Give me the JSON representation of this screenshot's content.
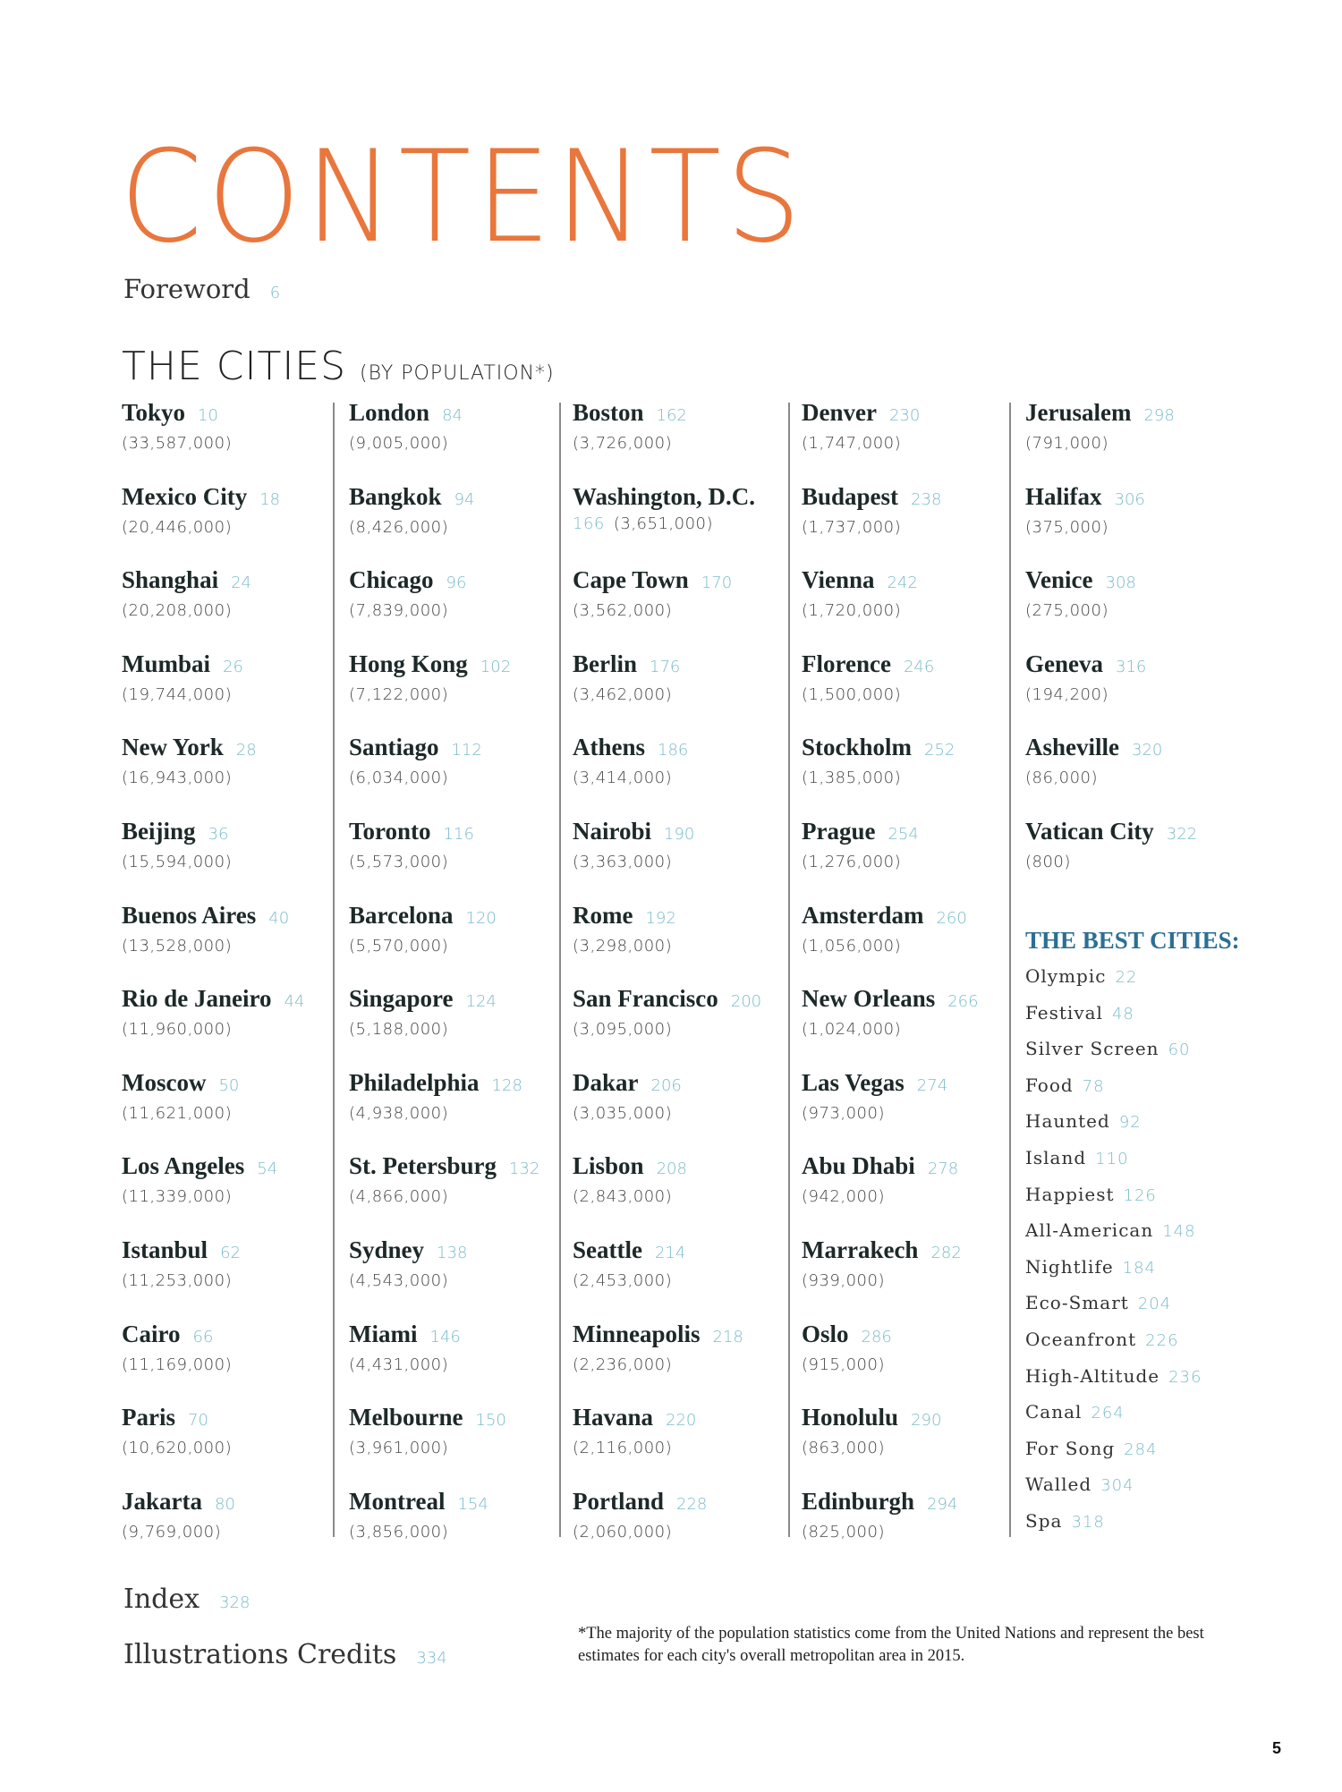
{
  "title": "CONTENTS",
  "foreword": {
    "label": "Foreword",
    "page": "6"
  },
  "cities_heading": {
    "main": "THE CITIES",
    "sub": "(BY POPULATION*)"
  },
  "columns": [
    [
      {
        "name": "Tokyo",
        "page": "10",
        "population": "(33,587,000)"
      },
      {
        "name": "Mexico City",
        "page": "18",
        "population": "(20,446,000)"
      },
      {
        "name": "Shanghai",
        "page": "24",
        "population": "(20,208,000)"
      },
      {
        "name": "Mumbai",
        "page": "26",
        "population": "(19,744,000)"
      },
      {
        "name": "New York",
        "page": "28",
        "population": "(16,943,000)"
      },
      {
        "name": "Beijing",
        "page": "36",
        "population": "(15,594,000)"
      },
      {
        "name": "Buenos Aires",
        "page": "40",
        "population": "(13,528,000)"
      },
      {
        "name": "Rio de Janeiro",
        "page": "44",
        "population": "(11,960,000)"
      },
      {
        "name": "Moscow",
        "page": "50",
        "population": "(11,621,000)"
      },
      {
        "name": "Los Angeles",
        "page": "54",
        "population": "(11,339,000)"
      },
      {
        "name": "Istanbul",
        "page": "62",
        "population": "(11,253,000)"
      },
      {
        "name": "Cairo",
        "page": "66",
        "population": "(11,169,000)"
      },
      {
        "name": "Paris",
        "page": "70",
        "population": "(10,620,000)"
      },
      {
        "name": "Jakarta",
        "page": "80",
        "population": "(9,769,000)"
      }
    ],
    [
      {
        "name": "London",
        "page": "84",
        "population": "(9,005,000)"
      },
      {
        "name": "Bangkok",
        "page": "94",
        "population": "(8,426,000)"
      },
      {
        "name": "Chicago",
        "page": "96",
        "population": "(7,839,000)"
      },
      {
        "name": "Hong Kong",
        "page": "102",
        "population": "(7,122,000)"
      },
      {
        "name": "Santiago",
        "page": "112",
        "population": "(6,034,000)"
      },
      {
        "name": "Toronto",
        "page": "116",
        "population": "(5,573,000)"
      },
      {
        "name": "Barcelona",
        "page": "120",
        "population": "(5,570,000)"
      },
      {
        "name": "Singapore",
        "page": "124",
        "population": "(5,188,000)"
      },
      {
        "name": "Philadelphia",
        "page": "128",
        "population": "(4,938,000)"
      },
      {
        "name": "St. Petersburg",
        "page": "132",
        "population": "(4,866,000)"
      },
      {
        "name": "Sydney",
        "page": "138",
        "population": "(4,543,000)"
      },
      {
        "name": "Miami",
        "page": "146",
        "population": "(4,431,000)"
      },
      {
        "name": "Melbourne",
        "page": "150",
        "population": "(3,961,000)"
      },
      {
        "name": "Montreal",
        "page": "154",
        "population": "(3,856,000)"
      }
    ],
    [
      {
        "name": "Boston",
        "page": "162",
        "population": "(3,726,000)"
      },
      {
        "name": "Washington, D.C.",
        "page": "166",
        "population": "(3,651,000)"
      },
      {
        "name": "Cape Town",
        "page": "170",
        "population": "(3,562,000)"
      },
      {
        "name": "Berlin",
        "page": "176",
        "population": "(3,462,000)"
      },
      {
        "name": "Athens",
        "page": "186",
        "population": "(3,414,000)"
      },
      {
        "name": "Nairobi",
        "page": "190",
        "population": "(3,363,000)"
      },
      {
        "name": "Rome",
        "page": "192",
        "population": "(3,298,000)"
      },
      {
        "name": "San Francisco",
        "page": "200",
        "population": "(3,095,000)"
      },
      {
        "name": "Dakar",
        "page": "206",
        "population": "(3,035,000)"
      },
      {
        "name": "Lisbon",
        "page": "208",
        "population": "(2,843,000)"
      },
      {
        "name": "Seattle",
        "page": "214",
        "population": "(2,453,000)"
      },
      {
        "name": "Minneapolis",
        "page": "218",
        "population": "(2,236,000)"
      },
      {
        "name": "Havana",
        "page": "220",
        "population": "(2,116,000)"
      },
      {
        "name": "Portland",
        "page": "228",
        "population": "(2,060,000)"
      }
    ],
    [
      {
        "name": "Denver",
        "page": "230",
        "population": "(1,747,000)"
      },
      {
        "name": "Budapest",
        "page": "238",
        "population": "(1,737,000)"
      },
      {
        "name": "Vienna",
        "page": "242",
        "population": "(1,720,000)"
      },
      {
        "name": "Florence",
        "page": "246",
        "population": "(1,500,000)"
      },
      {
        "name": "Stockholm",
        "page": "252",
        "population": "(1,385,000)"
      },
      {
        "name": "Prague",
        "page": "254",
        "population": "(1,276,000)"
      },
      {
        "name": "Amsterdam",
        "page": "260",
        "population": "(1,056,000)"
      },
      {
        "name": "New Orleans",
        "page": "266",
        "population": "(1,024,000)"
      },
      {
        "name": "Las Vegas",
        "page": "274",
        "population": "(973,000)"
      },
      {
        "name": "Abu Dhabi",
        "page": "278",
        "population": "(942,000)"
      },
      {
        "name": "Marrakech",
        "page": "282",
        "population": "(939,000)"
      },
      {
        "name": "Oslo",
        "page": "286",
        "population": "(915,000)"
      },
      {
        "name": "Honolulu",
        "page": "290",
        "population": "(863,000)"
      },
      {
        "name": "Edinburgh",
        "page": "294",
        "population": "(825,000)"
      }
    ],
    [
      {
        "name": "Jerusalem",
        "page": "298",
        "population": "(791,000)"
      },
      {
        "name": "Halifax",
        "page": "306",
        "population": "(375,000)"
      },
      {
        "name": "Venice",
        "page": "308",
        "population": "(275,000)"
      },
      {
        "name": "Geneva",
        "page": "316",
        "population": "(194,200)"
      },
      {
        "name": "Asheville",
        "page": "320",
        "population": "(86,000)"
      },
      {
        "name": "Vatican City",
        "page": "322",
        "population": "(800)"
      }
    ]
  ],
  "best_cities": {
    "heading": "THE BEST CITIES:",
    "items": [
      {
        "label": "Olympic",
        "page": "22"
      },
      {
        "label": "Festival",
        "page": "48"
      },
      {
        "label": "Silver Screen",
        "page": "60"
      },
      {
        "label": "Food",
        "page": "78"
      },
      {
        "label": "Haunted",
        "page": "92"
      },
      {
        "label": "Island",
        "page": "110"
      },
      {
        "label": "Happiest",
        "page": "126"
      },
      {
        "label": "All-American",
        "page": "148"
      },
      {
        "label": "Nightlife",
        "page": "184"
      },
      {
        "label": "Eco-Smart",
        "page": "204"
      },
      {
        "label": "Oceanfront",
        "page": "226"
      },
      {
        "label": "High-Altitude",
        "page": "236"
      },
      {
        "label": "Canal",
        "page": "264"
      },
      {
        "label": "For Song",
        "page": "284"
      },
      {
        "label": "Walled",
        "page": "304"
      },
      {
        "label": "Spa",
        "page": "318"
      }
    ]
  },
  "back_matter": {
    "index": {
      "label": "Index",
      "page": "328"
    },
    "credits": {
      "label": "Illustrations Credits",
      "page": "334"
    }
  },
  "footnote": "*The majority of the population statistics come from the United Nations and represent the best estimates for each city's overall metropolitan area in 2015.",
  "page_number": "5",
  "colors": {
    "title": "#e9763c",
    "page_ref": "#7bbccb",
    "best_heading": "#2b6f94",
    "text": "#1f2626"
  }
}
